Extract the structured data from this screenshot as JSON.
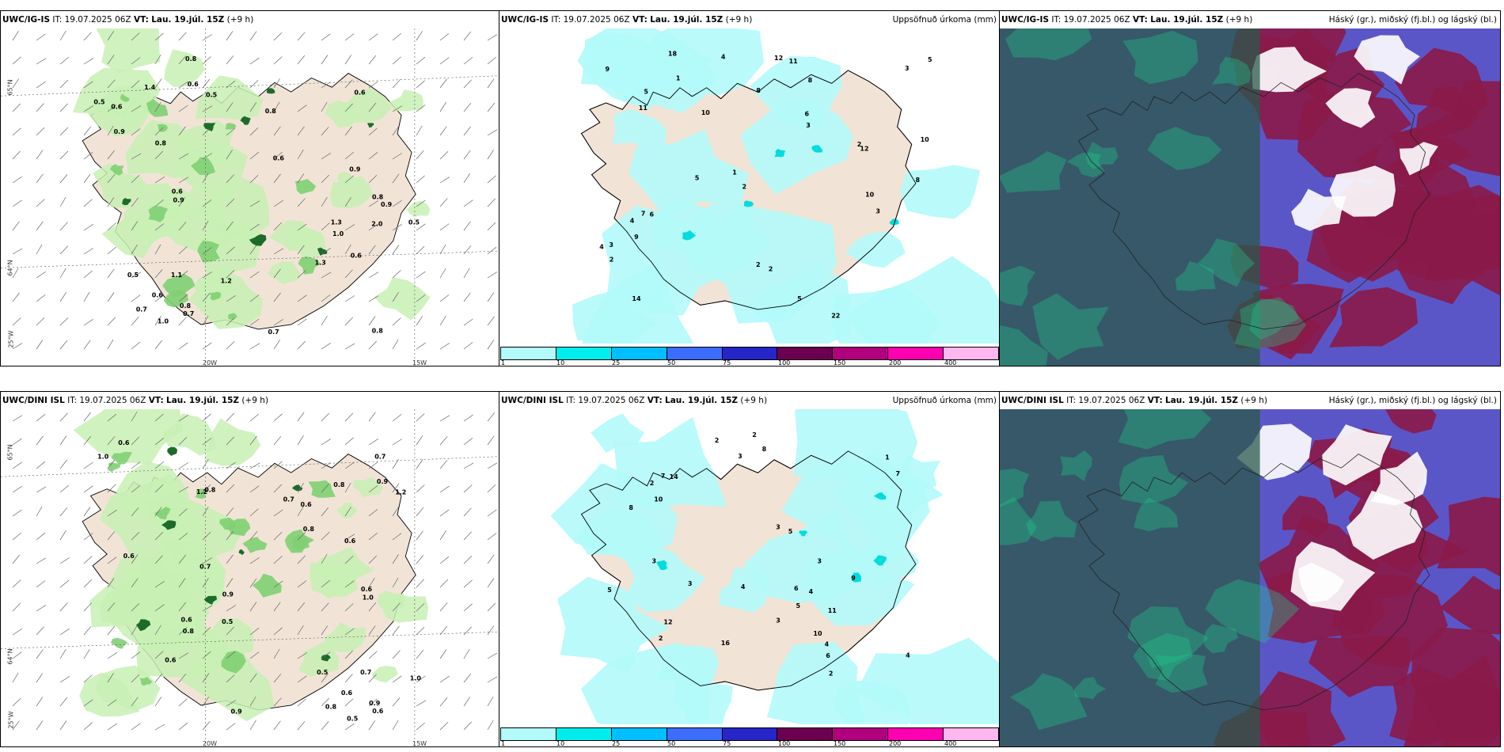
{
  "panels": [
    {
      "model": "UWC/IG-IS",
      "init_label": "IT:",
      "init": "19.07.2025 06Z",
      "valid_label": "VT:",
      "valid": "Lau. 19.júl. 15Z",
      "lead": "(+9 h)",
      "title": ""
    },
    {
      "model": "UWC/IG-IS",
      "init_label": "IT:",
      "init": "19.07.2025 06Z",
      "valid_label": "VT:",
      "valid": "Lau. 19.júl. 15Z",
      "lead": "(+9 h)",
      "title": "Uppsöfnuð úrkoma (mm)"
    },
    {
      "model": "UWC/IG-IS",
      "init_label": "IT:",
      "init": "19.07.2025 06Z",
      "valid_label": "VT:",
      "valid": "Lau. 19.júl. 15Z",
      "lead": "(+9 h)",
      "title": "Háský (gr.), miðský (fj.bl.) og lágský (bl.)"
    },
    {
      "model": "UWC/DINI ISL",
      "init_label": "IT:",
      "init": "19.07.2025 06Z",
      "valid_label": "VT:",
      "valid": "Lau. 19.júl. 15Z",
      "lead": "(+9 h)",
      "title": ""
    },
    {
      "model": "UWC/DINI ISL",
      "init_label": "IT:",
      "init": "19.07.2025 06Z",
      "valid_label": "VT:",
      "valid": "Lau. 19.júl. 15Z",
      "lead": "(+9 h)",
      "title": "Uppsöfnuð úrkoma (mm)"
    },
    {
      "model": "UWC/DINI ISL",
      "init_label": "IT:",
      "init": "19.07.2025 06Z",
      "valid_label": "VT:",
      "valid": "Lau. 19.júl. 15Z",
      "lead": "(+9 h)",
      "title": "Háský (gr.), miðský (fj.bl.) og lágský (bl.)"
    }
  ],
  "axis_labels": {
    "lat65": "65°N",
    "lat64": "64°N",
    "lon25": "25°W",
    "lon20": "20W",
    "lon15": "15W"
  },
  "legend": {
    "ticks": [
      "1",
      "10",
      "25",
      "50",
      "75",
      "100",
      "150",
      "200",
      "400"
    ],
    "colors": [
      "#b3fafa",
      "#00eded",
      "#00bfff",
      "#3c6dff",
      "#2525c8",
      "#6b0050",
      "#b0007e",
      "#ff00b0",
      "#ffb7f0"
    ]
  },
  "precip_values_top": [
    "0.9",
    "0.8",
    "1.0",
    "1.1",
    "1.3",
    "0.5",
    "0.6",
    "1.2",
    "0.7",
    "1.0",
    "0.9",
    "0.6",
    "0.8",
    "0.7",
    "0.6",
    "0.5",
    "2.0",
    "1.3",
    "0.9",
    "0.6",
    "0.8",
    "0.5",
    "0.7",
    "0.6",
    "1.4",
    "0.8",
    "0.6",
    "0.9",
    "0.8",
    "0.5",
    "0.6",
    "0.8"
  ],
  "precip_values_bottom": [
    "1.0",
    "0.9",
    "1.2",
    "1.0",
    "0.9",
    "0.8",
    "0.7",
    "0.6",
    "0.5",
    "0.8",
    "1.0",
    "0.6",
    "0.5",
    "0.7",
    "0.6",
    "0.9",
    "0.8",
    "0.6",
    "0.7",
    "0.5",
    "0.6",
    "0.8",
    "0.6",
    "0.7",
    "1.2",
    "0.6",
    "0.9",
    "0.8",
    "0.6",
    "0.6"
  ],
  "accum_values_top": [
    "5",
    "10",
    "14",
    "22",
    "12",
    "7",
    "11",
    "2",
    "3",
    "4",
    "5",
    "6",
    "8",
    "9",
    "3",
    "2",
    "1",
    "4",
    "5",
    "10",
    "11",
    "8",
    "3",
    "2",
    "5",
    "18",
    "6",
    "2",
    "3",
    "4",
    "1",
    "2",
    "10",
    "9",
    "8",
    "12"
  ],
  "accum_values_bottom": [
    "4",
    "3",
    "10",
    "5",
    "2",
    "12",
    "16",
    "3",
    "9",
    "6",
    "7",
    "4",
    "5",
    "8",
    "2",
    "3",
    "14",
    "11",
    "10",
    "7",
    "3",
    "2",
    "4",
    "5",
    "1",
    "2",
    "3",
    "6",
    "8",
    "2",
    "3",
    "4"
  ],
  "colors": {
    "land": "#f1e4d6",
    "precip_light": "#c8f0b4",
    "precip_mid": "#7fcf73",
    "precip_dark": "#1d6b2a",
    "accum": "#b3fafa",
    "coast": "#000000"
  }
}
